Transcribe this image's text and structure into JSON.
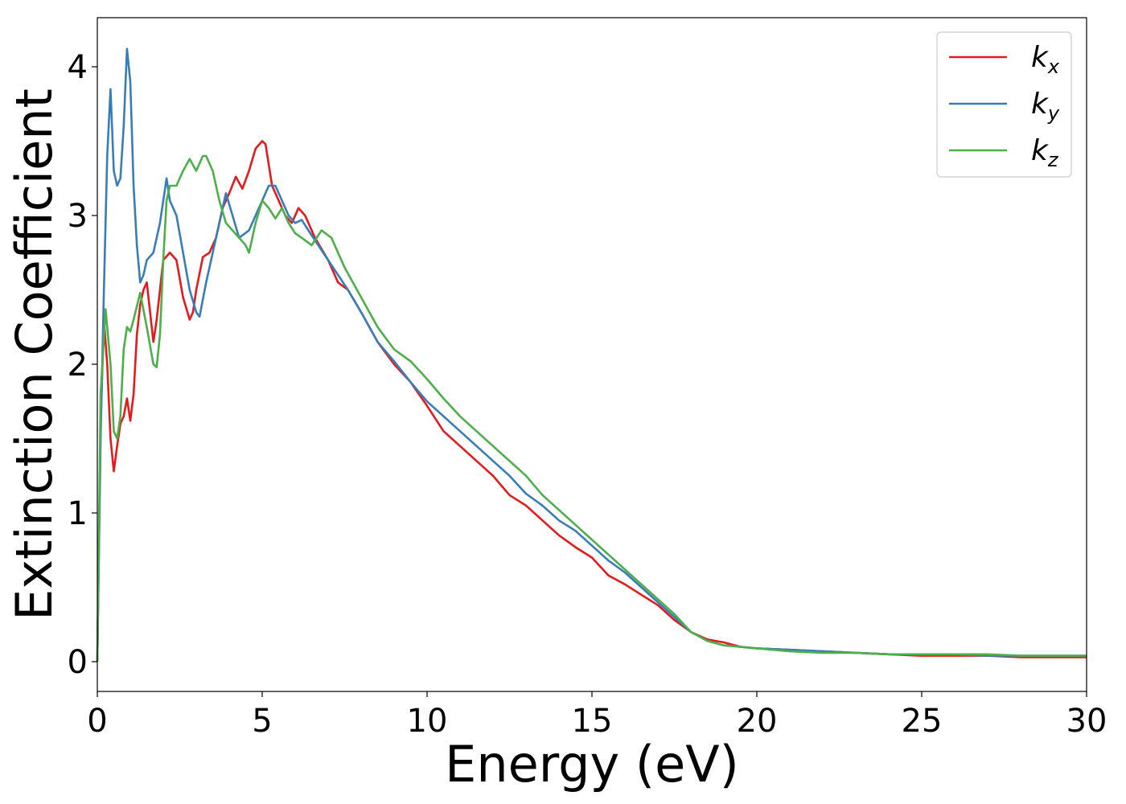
{
  "chart_data": {
    "type": "line",
    "title": "",
    "xlabel": "Energy (eV)",
    "ylabel": "Extinction Coefficient",
    "xlim": [
      0,
      30
    ],
    "ylim": [
      -0.2,
      4.33
    ],
    "xticks": [
      0,
      5,
      10,
      15,
      20,
      25,
      30
    ],
    "yticks": [
      0,
      1,
      2,
      3,
      4
    ],
    "grid": false,
    "legend_position": "top-right",
    "series": [
      {
        "name": "k_x",
        "label_main": "k",
        "label_sub": "x",
        "color": "#e41a1c",
        "x": [
          0,
          0.1,
          0.2,
          0.3,
          0.4,
          0.5,
          0.6,
          0.7,
          0.8,
          0.9,
          1.0,
          1.1,
          1.2,
          1.3,
          1.4,
          1.5,
          1.6,
          1.7,
          1.8,
          2.0,
          2.2,
          2.4,
          2.6,
          2.8,
          2.9,
          3.0,
          3.2,
          3.4,
          3.6,
          3.8,
          4.0,
          4.2,
          4.4,
          4.6,
          4.8,
          5.0,
          5.1,
          5.3,
          5.5,
          5.7,
          5.9,
          6.1,
          6.3,
          6.6,
          7.0,
          7.3,
          7.6,
          8.0,
          8.5,
          9.0,
          9.5,
          10.0,
          10.5,
          11.0,
          11.5,
          12.0,
          12.5,
          13.0,
          13.5,
          14.0,
          14.5,
          15.0,
          15.5,
          16.0,
          16.5,
          17.0,
          17.5,
          18.0,
          18.5,
          19.0,
          19.5,
          20,
          21,
          22,
          23,
          24,
          25,
          26,
          27,
          28,
          29,
          30
        ],
        "y": [
          0.0,
          1.6,
          2.3,
          2.0,
          1.5,
          1.28,
          1.45,
          1.6,
          1.65,
          1.77,
          1.62,
          1.8,
          2.2,
          2.4,
          2.5,
          2.55,
          2.35,
          2.15,
          2.3,
          2.7,
          2.75,
          2.7,
          2.45,
          2.3,
          2.35,
          2.5,
          2.72,
          2.75,
          2.85,
          3.05,
          3.15,
          3.26,
          3.18,
          3.3,
          3.45,
          3.5,
          3.48,
          3.2,
          3.1,
          3.0,
          2.95,
          3.05,
          3.0,
          2.85,
          2.7,
          2.55,
          2.5,
          2.35,
          2.15,
          2.0,
          1.88,
          1.72,
          1.55,
          1.45,
          1.35,
          1.25,
          1.12,
          1.05,
          0.95,
          0.85,
          0.77,
          0.7,
          0.58,
          0.52,
          0.45,
          0.38,
          0.28,
          0.2,
          0.15,
          0.13,
          0.1,
          0.09,
          0.08,
          0.07,
          0.06,
          0.05,
          0.04,
          0.04,
          0.04,
          0.03,
          0.03,
          0.03
        ]
      },
      {
        "name": "k_y",
        "label_main": "k",
        "label_sub": "y",
        "color": "#377eb8",
        "x": [
          0,
          0.1,
          0.2,
          0.3,
          0.4,
          0.5,
          0.6,
          0.7,
          0.8,
          0.9,
          1.0,
          1.1,
          1.2,
          1.3,
          1.4,
          1.5,
          1.7,
          1.9,
          2.1,
          2.2,
          2.4,
          2.6,
          2.8,
          3.0,
          3.1,
          3.3,
          3.5,
          3.7,
          3.9,
          4.1,
          4.3,
          4.6,
          4.9,
          5.0,
          5.2,
          5.4,
          5.6,
          5.8,
          6.0,
          6.2,
          6.4,
          6.7,
          7.0,
          7.3,
          7.6,
          8.0,
          8.5,
          9.0,
          9.5,
          10.0,
          10.5,
          11.0,
          11.5,
          12.0,
          12.5,
          13.0,
          13.5,
          14.0,
          14.5,
          15.0,
          15.5,
          16.0,
          16.5,
          17.0,
          17.5,
          18.0,
          18.5,
          19.0,
          19.5,
          20,
          21,
          22,
          23,
          24,
          25,
          26,
          27,
          28,
          29,
          30
        ],
        "y": [
          0.0,
          1.5,
          2.5,
          3.4,
          3.85,
          3.3,
          3.2,
          3.25,
          3.6,
          4.12,
          3.9,
          3.2,
          2.8,
          2.55,
          2.6,
          2.7,
          2.75,
          2.95,
          3.25,
          3.1,
          3.0,
          2.75,
          2.5,
          2.35,
          2.32,
          2.55,
          2.75,
          2.95,
          3.15,
          3.0,
          2.85,
          2.9,
          3.05,
          3.1,
          3.2,
          3.2,
          3.1,
          3.0,
          2.95,
          2.97,
          2.9,
          2.8,
          2.7,
          2.6,
          2.5,
          2.35,
          2.15,
          2.02,
          1.88,
          1.75,
          1.65,
          1.55,
          1.45,
          1.35,
          1.25,
          1.13,
          1.05,
          0.95,
          0.88,
          0.78,
          0.68,
          0.6,
          0.5,
          0.4,
          0.3,
          0.2,
          0.14,
          0.11,
          0.1,
          0.09,
          0.08,
          0.07,
          0.06,
          0.05,
          0.05,
          0.05,
          0.04,
          0.04,
          0.04,
          0.04
        ]
      },
      {
        "name": "k_z",
        "label_main": "k",
        "label_sub": "z",
        "color": "#4daf4a",
        "x": [
          0,
          0.1,
          0.25,
          0.4,
          0.5,
          0.6,
          0.7,
          0.8,
          0.9,
          1.0,
          1.1,
          1.3,
          1.5,
          1.7,
          1.8,
          1.9,
          2.0,
          2.1,
          2.2,
          2.4,
          2.6,
          2.8,
          3.0,
          3.2,
          3.3,
          3.5,
          3.7,
          3.9,
          4.1,
          4.3,
          4.5,
          4.6,
          4.8,
          5.0,
          5.2,
          5.4,
          5.6,
          5.8,
          6.0,
          6.2,
          6.5,
          6.8,
          7.1,
          7.5,
          8.0,
          8.5,
          9.0,
          9.5,
          10.0,
          10.5,
          11.0,
          11.5,
          12.0,
          12.5,
          13.0,
          13.5,
          14.0,
          14.5,
          15.0,
          15.5,
          16.0,
          16.5,
          17.0,
          17.5,
          18.0,
          18.5,
          19.0,
          19.5,
          20,
          21,
          22,
          23,
          24,
          25,
          26,
          27,
          28,
          29,
          30
        ],
        "y": [
          0.0,
          1.8,
          2.37,
          2.0,
          1.55,
          1.5,
          1.65,
          2.1,
          2.25,
          2.22,
          2.3,
          2.48,
          2.25,
          2.0,
          1.98,
          2.2,
          2.7,
          3.1,
          3.2,
          3.2,
          3.3,
          3.38,
          3.3,
          3.4,
          3.4,
          3.3,
          3.1,
          2.95,
          2.9,
          2.85,
          2.8,
          2.75,
          2.95,
          3.1,
          3.05,
          2.98,
          3.05,
          2.95,
          2.88,
          2.85,
          2.8,
          2.9,
          2.85,
          2.65,
          2.45,
          2.25,
          2.1,
          2.02,
          1.9,
          1.77,
          1.65,
          1.55,
          1.45,
          1.35,
          1.25,
          1.12,
          1.02,
          0.92,
          0.82,
          0.72,
          0.62,
          0.52,
          0.42,
          0.32,
          0.2,
          0.14,
          0.11,
          0.1,
          0.09,
          0.07,
          0.06,
          0.06,
          0.05,
          0.05,
          0.05,
          0.05,
          0.04,
          0.04,
          0.04
        ]
      }
    ]
  }
}
